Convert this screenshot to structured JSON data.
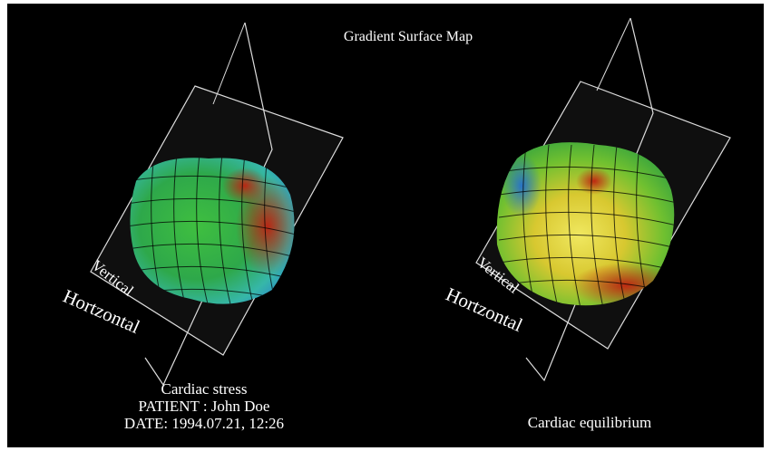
{
  "header": {
    "title": "Gradient Surface Map"
  },
  "panels": [
    {
      "axis_labels": {
        "vertical": "Vertical",
        "horizontal": "Hortzontal"
      },
      "caption": [
        "Cardiac stress",
        "PATIENT : John Doe",
        "DATE: 1994.07.21, 12:26"
      ]
    },
    {
      "axis_labels": {
        "vertical": "Vertical",
        "horizontal": "Hortzontal"
      },
      "caption": [
        "Cardiac equilibrium"
      ]
    }
  ]
}
